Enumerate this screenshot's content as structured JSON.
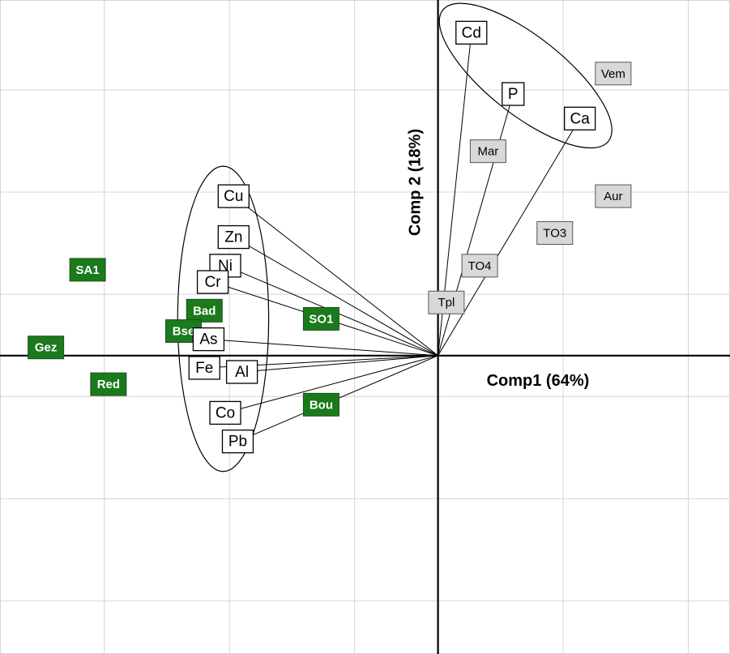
{
  "chart_data": {
    "type": "scatter",
    "xlabel": "Comp1 (64%)",
    "ylabel": "Comp 2 (18%)",
    "xlim": [
      -1.05,
      0.7
    ],
    "ylim": [
      -0.73,
      0.87
    ],
    "grid": true,
    "x_gridlines": [
      -0.8,
      -0.5,
      -0.2,
      0,
      0.3,
      0.6
    ],
    "y_gridlines": [
      -0.6,
      -0.35,
      -0.1,
      0,
      0.15,
      0.4,
      0.65
    ],
    "origin": [
      0,
      0
    ],
    "colors": {
      "site_green": "#1b7a1b",
      "site_grey": "#d8d8d8",
      "variable_box": "#ffffff"
    },
    "variables": [
      {
        "label": "Cd",
        "x": 0.08,
        "y": 0.79
      },
      {
        "label": "P",
        "x": 0.18,
        "y": 0.64
      },
      {
        "label": "Ca",
        "x": 0.34,
        "y": 0.58
      },
      {
        "label": "Cu",
        "x": -0.49,
        "y": 0.39
      },
      {
        "label": "Zn",
        "x": -0.49,
        "y": 0.29
      },
      {
        "label": "Ni",
        "x": -0.51,
        "y": 0.22
      },
      {
        "label": "Cr",
        "x": -0.54,
        "y": 0.18
      },
      {
        "label": "As",
        "x": -0.55,
        "y": 0.04
      },
      {
        "label": "Fe",
        "x": -0.56,
        "y": -0.03
      },
      {
        "label": "Al",
        "x": -0.47,
        "y": -0.04
      },
      {
        "label": "Co",
        "x": -0.51,
        "y": -0.14
      },
      {
        "label": "Pb",
        "x": -0.48,
        "y": -0.21
      }
    ],
    "ellipses": [
      {
        "name": "group-1",
        "members": [
          "Cd",
          "P",
          "Ca"
        ]
      },
      {
        "name": "group-2",
        "members": [
          "Cu",
          "Zn",
          "Ni",
          "Cr",
          "As",
          "Fe",
          "Al",
          "Co",
          "Pb"
        ]
      }
    ],
    "sites_group_a": [
      {
        "label": "SA1",
        "x": -0.84,
        "y": 0.21
      },
      {
        "label": "Gez",
        "x": -0.94,
        "y": 0.02
      },
      {
        "label": "Red",
        "x": -0.79,
        "y": -0.07
      },
      {
        "label": "Bad",
        "x": -0.56,
        "y": 0.11
      },
      {
        "label": "Bse",
        "x": -0.61,
        "y": 0.06
      },
      {
        "label": "SO1",
        "x": -0.28,
        "y": 0.09
      },
      {
        "label": "Bou",
        "x": -0.28,
        "y": -0.12
      }
    ],
    "sites_group_b": [
      {
        "label": "Vem",
        "x": 0.42,
        "y": 0.69
      },
      {
        "label": "Mar",
        "x": 0.12,
        "y": 0.5
      },
      {
        "label": "Aur",
        "x": 0.42,
        "y": 0.39
      },
      {
        "label": "TO3",
        "x": 0.28,
        "y": 0.3
      },
      {
        "label": "TO4",
        "x": 0.1,
        "y": 0.22
      },
      {
        "label": "Tpl",
        "x": 0.02,
        "y": 0.13
      }
    ]
  }
}
